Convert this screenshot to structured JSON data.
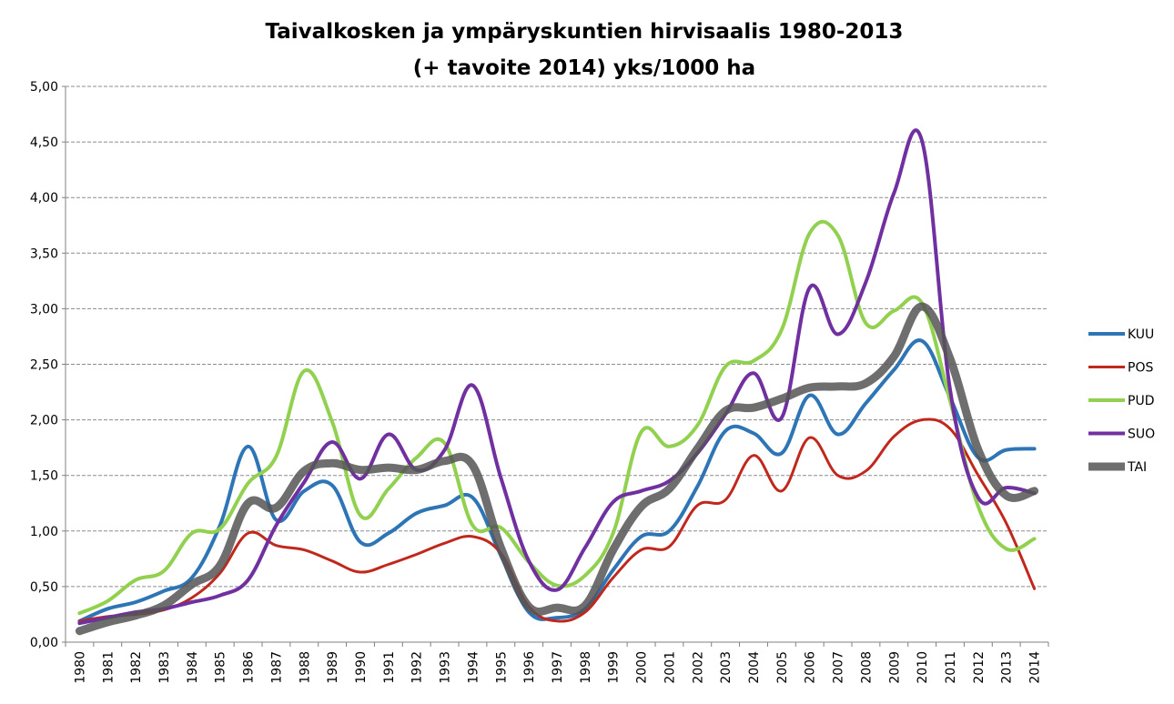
{
  "chart_data": {
    "type": "line",
    "title": "Taivalkosken  ja ympäryskuntien  hirvisaalis  1980-2013",
    "subtitle": "(+ tavoite  2014)  yks/1000  ha",
    "xlabel": "",
    "ylabel": "",
    "ylim": [
      0,
      5
    ],
    "yticks": [
      "0,00",
      "0,50",
      "1,00",
      "1,50",
      "2,00",
      "2,50",
      "3,00",
      "3,50",
      "4,00",
      "4,50",
      "5,00"
    ],
    "grid": true,
    "legend_position": "right",
    "categories": [
      "1980",
      "1981",
      "1982",
      "1983",
      "1984",
      "1985",
      "1986",
      "1987",
      "1988",
      "1989",
      "1990",
      "1991",
      "1992",
      "1993",
      "1994",
      "1995",
      "1996",
      "1997",
      "1998",
      "1999",
      "2000",
      "2001",
      "2002",
      "2003",
      "2004",
      "2005",
      "2006",
      "2007",
      "2008",
      "2009",
      "2010",
      "2011",
      "2012",
      "2013",
      "2014"
    ],
    "series": [
      {
        "name": "KUU",
        "color": "#2e75b6",
        "width": 4,
        "values": [
          0.19,
          0.3,
          0.36,
          0.46,
          0.58,
          1.05,
          1.76,
          1.1,
          1.36,
          1.41,
          0.9,
          0.98,
          1.16,
          1.23,
          1.3,
          0.78,
          0.27,
          0.22,
          0.3,
          0.65,
          0.95,
          1.0,
          1.4,
          1.9,
          1.88,
          1.7,
          2.22,
          1.87,
          2.15,
          2.45,
          2.71,
          2.2,
          1.66,
          1.73,
          1.74
        ]
      },
      {
        "name": "POS",
        "color": "#c0281d",
        "width": 3,
        "values": [
          0.19,
          0.23,
          0.25,
          0.29,
          0.4,
          0.62,
          0.98,
          0.87,
          0.83,
          0.73,
          0.63,
          0.7,
          0.79,
          0.89,
          0.95,
          0.8,
          0.32,
          0.19,
          0.27,
          0.58,
          0.83,
          0.86,
          1.23,
          1.28,
          1.68,
          1.36,
          1.84,
          1.5,
          1.54,
          1.85,
          2.0,
          1.92,
          1.5,
          1.07,
          0.48
        ]
      },
      {
        "name": "PUD",
        "color": "#92d050",
        "width": 4,
        "values": [
          0.26,
          0.37,
          0.56,
          0.64,
          0.98,
          1.02,
          1.43,
          1.67,
          2.44,
          1.98,
          1.14,
          1.38,
          1.66,
          1.79,
          1.05,
          1.03,
          0.72,
          0.51,
          0.6,
          0.98,
          1.89,
          1.76,
          1.95,
          2.48,
          2.53,
          2.81,
          3.68,
          3.66,
          2.87,
          2.98,
          3.05,
          2.17,
          1.22,
          0.84,
          0.93
        ]
      },
      {
        "name": "SUO",
        "color": "#7030a0",
        "width": 4,
        "values": [
          0.17,
          0.22,
          0.27,
          0.3,
          0.36,
          0.42,
          0.56,
          1.05,
          1.44,
          1.8,
          1.47,
          1.87,
          1.55,
          1.73,
          2.31,
          1.48,
          0.73,
          0.47,
          0.85,
          1.26,
          1.36,
          1.45,
          1.7,
          2.05,
          2.42,
          2.02,
          3.19,
          2.77,
          3.24,
          4.04,
          4.51,
          2.27,
          1.3,
          1.39,
          1.34
        ]
      },
      {
        "name": "TAI",
        "color": "#555555",
        "width": 9,
        "opacity": 0.85,
        "values": [
          0.1,
          0.18,
          0.24,
          0.33,
          0.52,
          0.69,
          1.25,
          1.21,
          1.54,
          1.61,
          1.55,
          1.57,
          1.55,
          1.63,
          1.59,
          0.85,
          0.32,
          0.31,
          0.33,
          0.83,
          1.22,
          1.38,
          1.74,
          2.08,
          2.11,
          2.19,
          2.29,
          2.3,
          2.33,
          2.57,
          3.02,
          2.55,
          1.73,
          1.32,
          1.36
        ]
      }
    ]
  }
}
